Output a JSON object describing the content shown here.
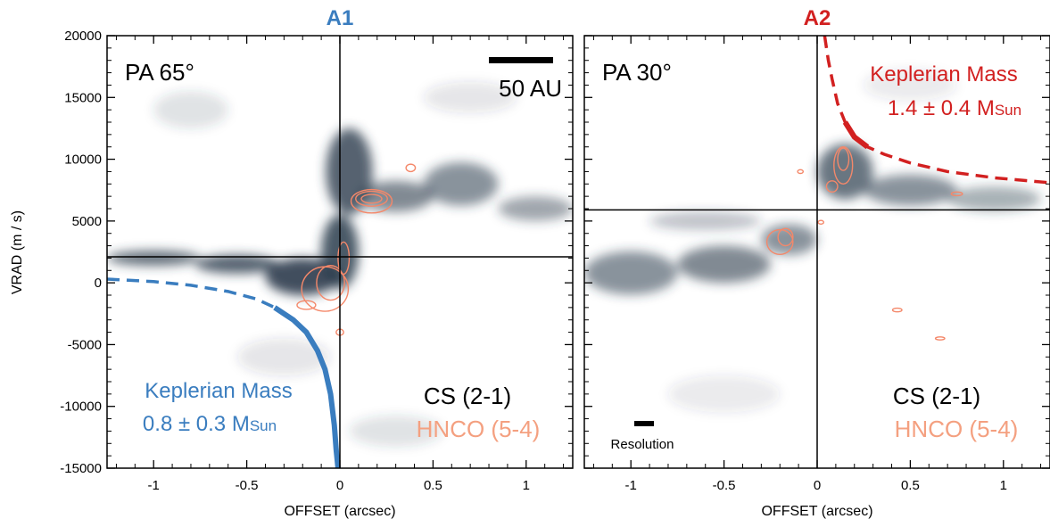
{
  "chart_data": [
    {
      "type": "pv-diagram",
      "title": "A1",
      "title_color": "#3a7dbf",
      "xlabel": "OFFSET (arcsec)",
      "ylabel": "VRAD (m / s)",
      "xlim": [
        -1.25,
        1.25
      ],
      "ylim": [
        -15000,
        20000
      ],
      "xticks": [
        -1,
        -0.5,
        0,
        0.5,
        1
      ],
      "yticks": [
        20000,
        15000,
        10000,
        5000,
        0,
        -5000,
        -10000,
        -15000
      ],
      "crosshair": {
        "x": 0,
        "y": 2100
      },
      "pa_label": "PA 65°",
      "scalebar_label": "50 AU",
      "line_labels": [
        {
          "text": "CS (2-1)",
          "color": "#000000"
        },
        {
          "text": "HNCO (5-4)",
          "color": "#f4a080"
        }
      ],
      "keplerian": {
        "label_line1": "Keplerian Mass",
        "label_line2": "0.8 ± 0.3 M",
        "sub": "Sun",
        "color": "#3a7dbf",
        "curve": [
          [
            -1.25,
            300
          ],
          [
            -1,
            100
          ],
          [
            -0.8,
            -200
          ],
          [
            -0.6,
            -700
          ],
          [
            -0.45,
            -1300
          ],
          [
            -0.35,
            -2000
          ],
          [
            -0.25,
            -3000
          ],
          [
            -0.18,
            -4000
          ],
          [
            -0.12,
            -5500
          ],
          [
            -0.08,
            -7000
          ],
          [
            -0.05,
            -9000
          ],
          [
            -0.03,
            -11500
          ],
          [
            -0.02,
            -13500
          ],
          [
            -0.01,
            -15000
          ]
        ],
        "thick_from_index": 5
      },
      "emission": [
        {
          "x": -1.0,
          "y": 2000,
          "w": 0.5,
          "h": 1200,
          "o": 0.75
        },
        {
          "x": -0.55,
          "y": 1500,
          "w": 0.45,
          "h": 1500,
          "o": 0.8
        },
        {
          "x": -0.2,
          "y": 500,
          "w": 0.4,
          "h": 3000,
          "o": 0.9
        },
        {
          "x": 0.0,
          "y": 2500,
          "w": 0.2,
          "h": 6000,
          "o": 0.85
        },
        {
          "x": 0.05,
          "y": 9000,
          "w": 0.25,
          "h": 7000,
          "o": 0.8
        },
        {
          "x": 0.3,
          "y": 7000,
          "w": 0.4,
          "h": 2500,
          "o": 0.6
        },
        {
          "x": 0.65,
          "y": 8000,
          "w": 0.4,
          "h": 3500,
          "o": 0.55
        },
        {
          "x": 1.05,
          "y": 6000,
          "w": 0.4,
          "h": 2000,
          "o": 0.45
        },
        {
          "x": -0.8,
          "y": 14000,
          "w": 0.4,
          "h": 3000,
          "o": 0.15
        },
        {
          "x": -0.3,
          "y": -6000,
          "w": 0.5,
          "h": 3000,
          "o": 0.12
        },
        {
          "x": 0.3,
          "y": -12000,
          "w": 0.5,
          "h": 2500,
          "o": 0.15
        },
        {
          "x": 0.7,
          "y": 15000,
          "w": 0.5,
          "h": 2500,
          "o": 0.12
        }
      ],
      "contours": [
        {
          "x": 0.17,
          "y": 6800,
          "w": 0.11,
          "h": 700
        },
        {
          "x": 0.17,
          "y": 6800,
          "w": 0.17,
          "h": 1200
        },
        {
          "x": 0.17,
          "y": 6600,
          "w": 0.22,
          "h": 1900
        },
        {
          "x": 0.02,
          "y": 2000,
          "w": 0.06,
          "h": 2600
        },
        {
          "x": -0.05,
          "y": 0,
          "w": 0.15,
          "h": 2800
        },
        {
          "x": -0.08,
          "y": -500,
          "w": 0.25,
          "h": 3600
        },
        {
          "x": -0.18,
          "y": -1800,
          "w": 0.1,
          "h": 700
        },
        {
          "x": 0.38,
          "y": 9300,
          "w": 0.05,
          "h": 600
        },
        {
          "x": 0.0,
          "y": -4000,
          "w": 0.04,
          "h": 500
        }
      ]
    },
    {
      "type": "pv-diagram",
      "title": "A2",
      "title_color": "#d22020",
      "xlabel": "OFFSET (arcsec)",
      "ylabel": "",
      "xlim": [
        -1.25,
        1.25
      ],
      "ylim": [
        -15000,
        20000
      ],
      "xticks": [
        -1,
        -0.5,
        0,
        0.5,
        1
      ],
      "crosshair": {
        "x": 0,
        "y": 5900
      },
      "pa_label": "PA 30°",
      "resolution_label": "Resolution",
      "line_labels": [
        {
          "text": "CS (2-1)",
          "color": "#000000"
        },
        {
          "text": "HNCO (5-4)",
          "color": "#f4a080"
        }
      ],
      "keplerian": {
        "label_line1": "Keplerian Mass",
        "label_line2": "1.4 ± 0.4 M",
        "sub": "Sun",
        "color": "#d22020",
        "curve": [
          [
            0.04,
            20000
          ],
          [
            0.06,
            18000
          ],
          [
            0.08,
            16500
          ],
          [
            0.11,
            14500
          ],
          [
            0.15,
            13000
          ],
          [
            0.2,
            11800
          ],
          [
            0.27,
            11000
          ],
          [
            0.36,
            10400
          ],
          [
            0.5,
            9700
          ],
          [
            0.7,
            9000
          ],
          [
            0.95,
            8500
          ],
          [
            1.25,
            8100
          ]
        ],
        "thick_range": [
          4,
          6
        ]
      },
      "emission": [
        {
          "x": -1.0,
          "y": 800,
          "w": 0.5,
          "h": 3500,
          "o": 0.55
        },
        {
          "x": -0.5,
          "y": 1500,
          "w": 0.5,
          "h": 3000,
          "o": 0.6
        },
        {
          "x": -0.15,
          "y": 3500,
          "w": 0.3,
          "h": 2500,
          "o": 0.55
        },
        {
          "x": 0.15,
          "y": 9000,
          "w": 0.3,
          "h": 4500,
          "o": 0.7
        },
        {
          "x": 0.5,
          "y": 7500,
          "w": 0.5,
          "h": 2500,
          "o": 0.55
        },
        {
          "x": 0.95,
          "y": 6800,
          "w": 0.5,
          "h": 2000,
          "o": 0.4
        },
        {
          "x": -0.6,
          "y": 5000,
          "w": 0.6,
          "h": 1500,
          "o": 0.3
        },
        {
          "x": -0.5,
          "y": -9000,
          "w": 0.6,
          "h": 3000,
          "o": 0.1
        },
        {
          "x": 0.5,
          "y": 16000,
          "w": 0.5,
          "h": 2500,
          "o": 0.1
        }
      ],
      "contours": [
        {
          "x": 0.14,
          "y": 10000,
          "w": 0.06,
          "h": 1800
        },
        {
          "x": 0.14,
          "y": 9500,
          "w": 0.1,
          "h": 3000
        },
        {
          "x": 0.08,
          "y": 7800,
          "w": 0.06,
          "h": 900
        },
        {
          "x": -0.17,
          "y": 3700,
          "w": 0.08,
          "h": 1400
        },
        {
          "x": -0.2,
          "y": 3300,
          "w": 0.14,
          "h": 2000
        },
        {
          "x": 0.75,
          "y": 7200,
          "w": 0.06,
          "h": 300
        },
        {
          "x": 0.43,
          "y": -2200,
          "w": 0.05,
          "h": 300
        },
        {
          "x": 0.66,
          "y": -4500,
          "w": 0.05,
          "h": 250
        },
        {
          "x": -0.09,
          "y": 9000,
          "w": 0.03,
          "h": 300
        },
        {
          "x": 0.02,
          "y": 4900,
          "w": 0.03,
          "h": 300
        }
      ]
    }
  ]
}
